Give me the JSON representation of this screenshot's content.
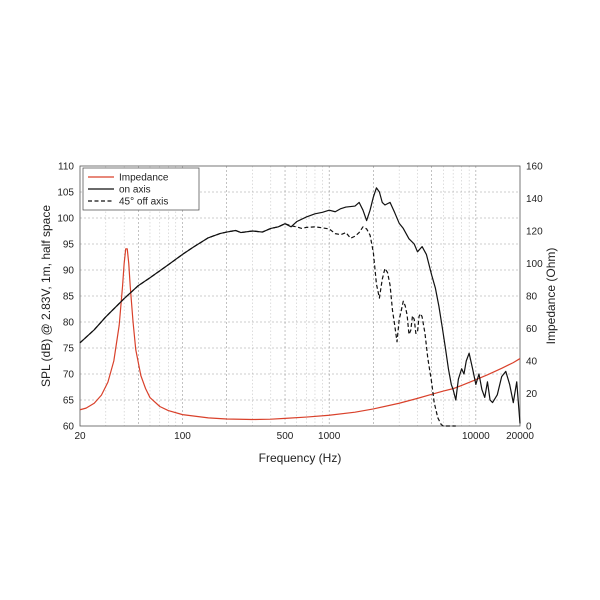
{
  "chart_data": {
    "type": "line",
    "xlabel": "Frequency (Hz)",
    "ylabel_left": "SPL (dB) @ 2.83V, 1m, half space",
    "ylabel_right": "Impedance (Ohm)",
    "x_scale": "log",
    "xlim": [
      20,
      20000
    ],
    "ylim_left": [
      60,
      110
    ],
    "ylim_right": [
      0,
      160
    ],
    "x_ticks": [
      {
        "value": 20,
        "label": "20"
      },
      {
        "value": 100,
        "label": "100"
      },
      {
        "value": 500,
        "label": "500"
      },
      {
        "value": 1000,
        "label": "1000"
      },
      {
        "value": 10000,
        "label": "10000"
      },
      {
        "value": 20000,
        "label": "20000"
      }
    ],
    "y_ticks_left": [
      "60",
      "65",
      "70",
      "75",
      "80",
      "85",
      "90",
      "95",
      "100",
      "105",
      "110"
    ],
    "y_ticks_right": [
      "0",
      "20",
      "40",
      "60",
      "80",
      "100",
      "120",
      "140",
      "160"
    ],
    "grid": true,
    "legend_position": "top-left",
    "colors": {
      "impedance": "#d9412b",
      "on_axis": "#111111",
      "off_axis": "#111111"
    },
    "series": [
      {
        "name": "Impedance",
        "axis": "right",
        "style": "solid",
        "x": [
          20,
          22,
          25,
          28,
          31,
          34,
          37,
          39,
          40,
          41,
          42,
          43,
          44,
          46,
          48,
          52,
          56,
          60,
          70,
          80,
          100,
          150,
          200,
          300,
          400,
          500,
          700,
          1000,
          1500,
          2000,
          3000,
          4000,
          5000,
          6000,
          7000,
          8000,
          10000,
          12000,
          15000,
          18000,
          20000
        ],
        "y": [
          10,
          11,
          14,
          19,
          27,
          40,
          62,
          86,
          100,
          109,
          109,
          100,
          86,
          64,
          47,
          31,
          23,
          17.5,
          12,
          9.5,
          7,
          5,
          4.3,
          4,
          4.2,
          4.7,
          5.5,
          6.6,
          8.5,
          10.5,
          14,
          17,
          19.5,
          21.5,
          23,
          25,
          28.5,
          31.5,
          35.5,
          39,
          41.5
        ]
      },
      {
        "name": "on axis",
        "axis": "left",
        "style": "solid",
        "x": [
          20,
          25,
          30,
          40,
          50,
          60,
          80,
          100,
          120,
          150,
          180,
          200,
          230,
          250,
          300,
          350,
          400,
          450,
          500,
          550,
          600,
          700,
          800,
          900,
          1000,
          1100,
          1200,
          1300,
          1400,
          1500,
          1600,
          1700,
          1800,
          1900,
          2000,
          2100,
          2200,
          2300,
          2400,
          2600,
          2800,
          3000,
          3200,
          3500,
          3800,
          4000,
          4300,
          4600,
          5000,
          5300,
          5600,
          5900,
          6200,
          6500,
          6800,
          7000,
          7300,
          7600,
          8000,
          8300,
          8600,
          9000,
          9500,
          10000,
          10500,
          11000,
          11500,
          12000,
          12500,
          13000,
          14000,
          15000,
          16000,
          17000,
          18000,
          19000,
          20000
        ],
        "y": [
          76,
          78.5,
          81,
          84.5,
          87,
          88.5,
          91,
          93,
          94.5,
          96.2,
          97,
          97.3,
          97.6,
          97.2,
          97.5,
          97.3,
          98,
          98.3,
          98.9,
          98.3,
          99.3,
          100.2,
          100.8,
          101.1,
          101.5,
          101.2,
          101.8,
          102.1,
          102.2,
          102.3,
          103,
          101.5,
          99.5,
          101.5,
          104,
          105.8,
          105,
          103,
          102.5,
          103,
          101,
          99,
          98,
          96,
          95,
          93.5,
          94.5,
          93,
          89,
          86.5,
          83,
          79,
          75,
          71,
          68,
          67,
          65,
          69,
          71,
          70,
          72.5,
          74,
          71,
          68,
          70,
          67,
          65.5,
          68.5,
          65,
          64.5,
          66,
          69.5,
          70.5,
          68,
          64.5,
          68.5,
          60.5
        ]
      },
      {
        "name": "45° off axis",
        "axis": "left",
        "style": "dashed",
        "x": [
          20,
          25,
          30,
          40,
          50,
          60,
          80,
          100,
          120,
          150,
          180,
          200,
          230,
          250,
          300,
          350,
          400,
          450,
          500,
          550,
          600,
          650,
          700,
          800,
          900,
          1000,
          1100,
          1200,
          1300,
          1400,
          1500,
          1600,
          1700,
          1800,
          1900,
          2000,
          2100,
          2200,
          2300,
          2400,
          2500,
          2600,
          2700,
          2800,
          2900,
          3000,
          3100,
          3200,
          3300,
          3400,
          3500,
          3600,
          3700,
          3800,
          3900,
          4000,
          4100,
          4200,
          4300,
          4500,
          4700,
          5000,
          5200,
          5500,
          5800,
          6000,
          6300,
          6600,
          7000,
          7300
        ],
        "y": [
          76,
          78.5,
          81,
          84.5,
          87,
          88.5,
          91,
          93,
          94.5,
          96.2,
          97,
          97.3,
          97.6,
          97.2,
          97.5,
          97.3,
          98,
          98.3,
          98.9,
          98.5,
          98.3,
          98,
          98.2,
          98.3,
          98.1,
          97.9,
          97,
          96.8,
          97.2,
          96.1,
          96.5,
          97.2,
          98.3,
          97.9,
          96.7,
          93.4,
          87.3,
          84.6,
          88.2,
          90.3,
          89.5,
          87.1,
          82.3,
          79.3,
          76.2,
          80.4,
          82.2,
          84,
          83.1,
          81.3,
          77.6,
          78.4,
          81.2,
          80.5,
          77.8,
          78,
          81.1,
          81.6,
          81,
          77.8,
          73.1,
          68.3,
          64.5,
          61.6,
          60.3,
          59.3,
          59.8,
          60,
          60,
          60
        ]
      }
    ]
  }
}
